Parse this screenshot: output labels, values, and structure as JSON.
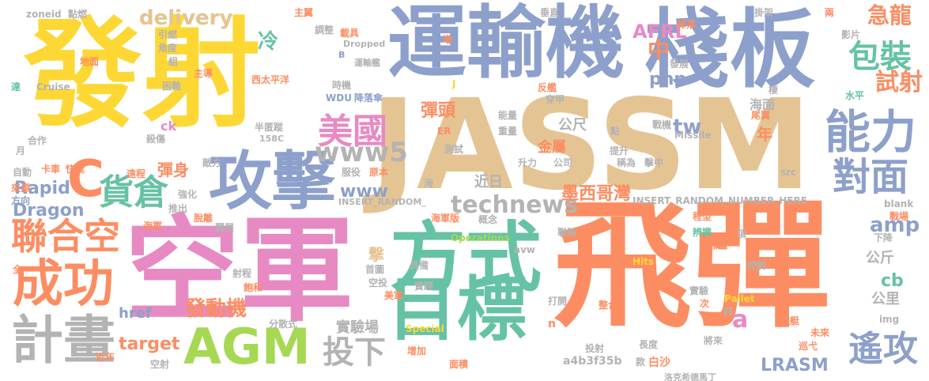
{
  "palette": {
    "yellow": "#fdd835",
    "blue": "#8da0cb",
    "orange": "#fc8d62",
    "teal": "#66c2a5",
    "pink": "#e78ac3",
    "tan": "#e5c494",
    "gray": "#b3b3b3",
    "green": "#a6d854",
    "background": "#ffffff"
  },
  "words": {
    "w001": "發射",
    "w002": "運輸機",
    "w003": "棧板",
    "w004": "JASSM",
    "w005": "飛彈",
    "w006": "空軍",
    "w007": "攻擊",
    "w008": "方式",
    "w009": "目標",
    "w010": "AGM",
    "w011": "計畫",
    "w012": "成功",
    "w013": "聯合空",
    "w014": "貨倉",
    "w015": "能力",
    "w016": "對面",
    "w017": "試射",
    "w018": "包裝",
    "w019": "遙攻",
    "w020": "美國",
    "w021": "www5",
    "w022": "technews",
    "w023": "投下",
    "w024": "發動機",
    "w025": "delivery",
    "w026": "冷",
    "w027": "中",
    "w028": "php",
    "w029": "tw",
    "w030": "AFRL",
    "w031": "急龍",
    "w032": "www",
    "w033": "Rapid",
    "w034": "Dragon",
    "w035": "target",
    "w036": "amp",
    "w037": "cb",
    "w038": "彈頭",
    "w039": "墨西哥灣",
    "w040": "LRASM",
    "w041": "a",
    "w042": "a4b3f35b",
    "w043": "INSERT_RANDOM_NUMBER_HERE",
    "w044": "彈身",
    "w045": "C",
    "w046": "公尺",
    "w047": "海面",
    "w048": "年",
    "w049": "公斤",
    "w050": "公里",
    "w051": "實驗場",
    "w052": "金屬",
    "w053": "近日",
    "w054": "撃",
    "w055": "繼",
    "w056": "白沙",
    "w057": "zoneid",
    "w058": "點燃",
    "w059": "主翼",
    "w060": "垂直",
    "w061": "掛架",
    "w062": "兩",
    "w063": "引燃",
    "w064": "角度",
    "w065": "地面",
    "w066": "主導",
    "w067": "困難",
    "w068": "達",
    "w069": "Cruise",
    "w070": "西太平洋",
    "w071": "時機",
    "w072": "反艦",
    "w073": "穿甲",
    "w074": "WDU",
    "w075": "降落傘",
    "w076": "水平",
    "w077": "尾翼",
    "w078": "Missile",
    "w079": "戰機",
    "w080": "半匿蹤",
    "w081": "158C",
    "w082": "測試",
    "w083": "ER",
    "w084": "重量",
    "w085": "能量",
    "w086": "合作",
    "w087": "殺傷",
    "w088": "月",
    "w089": "ck",
    "w090": "公司",
    "w091": "提升",
    "w092": "稱為",
    "w093": "擊中",
    "w094": "升力",
    "w095": "原本",
    "w096": "服役",
    "w097": "src",
    "w098": "自動",
    "w099": "卡車",
    "w100": "快艇",
    "w101": "遠程",
    "w102": "敵方",
    "w103": "強化",
    "w104": "方向",
    "w105": "來源",
    "w106": "推出",
    "w107": "海軍",
    "w108": "脫離",
    "w109": "翼展",
    "w110": "海軍版",
    "w111": "概念",
    "w112": "Operations",
    "w113": "Special",
    "w114": "avw",
    "w115": "聯裝",
    "w116": "程型",
    "w117": "辨識",
    "w118": "戰場",
    "w119": "項",
    "w120": "下降",
    "w121": "blank",
    "w122": "截圖",
    "w123": "Hits",
    "w124": "控制",
    "w125": "實驗",
    "w126": "次",
    "w127": "Pallet",
    "w128": "四",
    "w129": "艦艇",
    "w130": "未來",
    "w131": "巡弋",
    "w132": "將來",
    "w133": "洛克希德馬丁",
    "w134": "長度",
    "w135": "款",
    "w136": "投射",
    "w137": "面積",
    "w138": "增加",
    "w139": "打開",
    "w140": "整合",
    "w141": "n",
    "w142": "美軍",
    "w143": "實踐",
    "w144": "具備",
    "w145": "首圖",
    "w146": "空投",
    "w147": "射程",
    "w148": "飽和",
    "w149": "分散式",
    "w150": "href",
    "w151": "img",
    "w152": "近年",
    "w153": "空射",
    "w154": "全",
    "w155": "掉落",
    "w156": "發展",
    "w157": "影片",
    "w158": "棲",
    "w159": "點",
    "w160": "Dropped",
    "w161": "調整",
    "w162": "載具",
    "w163": "運輸艦",
    "w164": "J",
    "w165": "B",
    "w166": "組",
    "w167": "增",
    "w168": "海",
    "w169": "INSERT_RANDOM_",
    "w170": "公尺"
  }
}
